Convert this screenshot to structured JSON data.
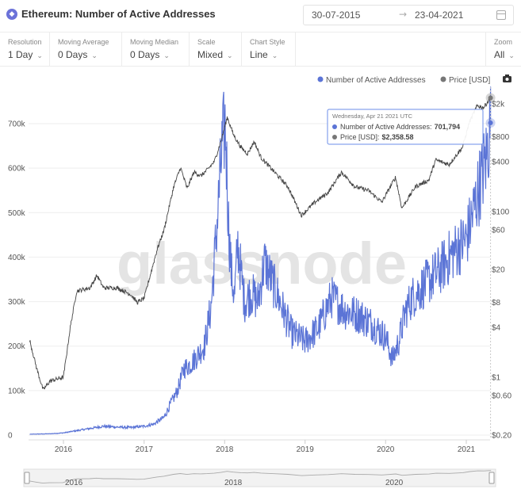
{
  "header": {
    "title": "Ethereum: Number of Active Addresses",
    "date_from": "30-07-2015",
    "date_arrow": "→",
    "date_to": "23-04-2021"
  },
  "controls": [
    {
      "label": "Resolution",
      "value": "1 Day"
    },
    {
      "label": "Moving Average",
      "value": "0 Days"
    },
    {
      "label": "Moving Median",
      "value": "0 Days"
    },
    {
      "label": "Scale",
      "value": "Mixed"
    },
    {
      "label": "Chart Style",
      "value": "Line"
    }
  ],
  "zoom": {
    "label": "Zoom",
    "value": "All"
  },
  "chevron": "⌄",
  "watermark": "glassnode",
  "colors": {
    "addresses": "#5b74d6",
    "price": "#444444",
    "grid": "#eeeeee"
  },
  "tooltip": {
    "date": "Wednesday, Apr 21 2021 UTC",
    "addresses_label": "Number of Active Addresses:",
    "addresses_value": "701,794",
    "price_label": "Price [USD]:",
    "price_value": "$2,358.58"
  },
  "navigator": {
    "labels": [
      "2016",
      "2018",
      "2020"
    ]
  },
  "chart_data": {
    "type": "line",
    "legend": {
      "placement": "top-right",
      "entries": [
        "Number of Active Addresses",
        "Price [USD]"
      ]
    },
    "x_ticks": [
      "2016",
      "2017",
      "2018",
      "2019",
      "2020",
      "2021"
    ],
    "left_axis": {
      "ticks": [
        0,
        100000,
        200000,
        300000,
        400000,
        500000,
        600000,
        700000
      ],
      "tick_labels": [
        "0",
        "100k",
        "200k",
        "300k",
        "400k",
        "500k",
        "600k",
        "700k"
      ],
      "range": [
        0,
        750000
      ]
    },
    "right_axis": {
      "scale": "log",
      "ticks": [
        0.2,
        0.6,
        1,
        4,
        8,
        20,
        60,
        100,
        400,
        800,
        2000
      ],
      "tick_labels": [
        "$0.20",
        "$0.60",
        "$1",
        "$4",
        "$8",
        "$20",
        "$60",
        "$100",
        "$400",
        "$800",
        "$2k"
      ]
    },
    "grid": true,
    "series": [
      {
        "name": "Number of Active Addresses",
        "axis": "left",
        "points": [
          [
            "2015-08-01",
            2000
          ],
          [
            "2015-11-01",
            3000
          ],
          [
            "2016-01-01",
            5000
          ],
          [
            "2016-03-01",
            10000
          ],
          [
            "2016-05-01",
            15000
          ],
          [
            "2016-07-01",
            20000
          ],
          [
            "2016-09-01",
            18000
          ],
          [
            "2016-11-01",
            17000
          ],
          [
            "2017-01-01",
            20000
          ],
          [
            "2017-02-15",
            25000
          ],
          [
            "2017-04-01",
            40000
          ],
          [
            "2017-05-01",
            70000
          ],
          [
            "2017-06-01",
            100000
          ],
          [
            "2017-07-01",
            150000
          ],
          [
            "2017-08-01",
            160000
          ],
          [
            "2017-09-01",
            180000
          ],
          [
            "2017-10-01",
            200000
          ],
          [
            "2017-11-01",
            290000
          ],
          [
            "2017-12-01",
            500000
          ],
          [
            "2017-12-20",
            640000
          ],
          [
            "2018-01-04",
            700000
          ],
          [
            "2018-01-20",
            460000
          ],
          [
            "2018-02-01",
            360000
          ],
          [
            "2018-02-15",
            310000
          ],
          [
            "2018-03-01",
            430000
          ],
          [
            "2018-04-01",
            300000
          ],
          [
            "2018-05-01",
            320000
          ],
          [
            "2018-06-01",
            300000
          ],
          [
            "2018-07-01",
            390000
          ],
          [
            "2018-09-01",
            310000
          ],
          [
            "2018-11-01",
            230000
          ],
          [
            "2019-01-01",
            210000
          ],
          [
            "2019-03-01",
            240000
          ],
          [
            "2019-05-01",
            310000
          ],
          [
            "2019-07-01",
            280000
          ],
          [
            "2019-09-01",
            270000
          ],
          [
            "2019-11-01",
            250000
          ],
          [
            "2020-01-01",
            220000
          ],
          [
            "2020-02-01",
            170000
          ],
          [
            "2020-03-01",
            210000
          ],
          [
            "2020-04-01",
            280000
          ],
          [
            "2020-05-01",
            310000
          ],
          [
            "2020-07-01",
            340000
          ],
          [
            "2020-09-01",
            370000
          ],
          [
            "2020-11-01",
            410000
          ],
          [
            "2021-01-01",
            440000
          ],
          [
            "2021-02-01",
            500000
          ],
          [
            "2021-03-01",
            560000
          ],
          [
            "2021-04-01",
            620000
          ],
          [
            "2021-04-21",
            701794
          ]
        ]
      },
      {
        "name": "Price [USD]",
        "axis": "right",
        "points": [
          [
            "2015-08-01",
            2.8
          ],
          [
            "2015-09-01",
            1.3
          ],
          [
            "2015-10-01",
            0.7
          ],
          [
            "2015-11-01",
            0.9
          ],
          [
            "2016-01-01",
            1.0
          ],
          [
            "2016-02-01",
            4.0
          ],
          [
            "2016-03-01",
            11.0
          ],
          [
            "2016-05-01",
            12.0
          ],
          [
            "2016-06-01",
            17.0
          ],
          [
            "2016-07-01",
            12.0
          ],
          [
            "2016-09-01",
            12.0
          ],
          [
            "2016-11-01",
            10.0
          ],
          [
            "2016-12-01",
            8.0
          ],
          [
            "2017-01-01",
            9.0
          ],
          [
            "2017-03-01",
            35.0
          ],
          [
            "2017-04-01",
            60.0
          ],
          [
            "2017-05-15",
            200.0
          ],
          [
            "2017-06-15",
            340.0
          ],
          [
            "2017-07-15",
            190.0
          ],
          [
            "2017-08-15",
            300.0
          ],
          [
            "2017-09-15",
            270.0
          ],
          [
            "2017-10-15",
            320.0
          ],
          [
            "2017-11-15",
            400.0
          ],
          [
            "2017-12-15",
            700.0
          ],
          [
            "2018-01-13",
            1380.0
          ],
          [
            "2018-02-10",
            850.0
          ],
          [
            "2018-03-15",
            600.0
          ],
          [
            "2018-04-15",
            500.0
          ],
          [
            "2018-05-15",
            700.0
          ],
          [
            "2018-06-15",
            450.0
          ],
          [
            "2018-08-15",
            300.0
          ],
          [
            "2018-10-15",
            200.0
          ],
          [
            "2018-12-15",
            90.0
          ],
          [
            "2019-02-15",
            130.0
          ],
          [
            "2019-04-15",
            170.0
          ],
          [
            "2019-06-15",
            300.0
          ],
          [
            "2019-08-15",
            200.0
          ],
          [
            "2019-10-15",
            180.0
          ],
          [
            "2019-12-15",
            130.0
          ],
          [
            "2020-02-15",
            260.0
          ],
          [
            "2020-03-15",
            110.0
          ],
          [
            "2020-05-15",
            200.0
          ],
          [
            "2020-07-15",
            240.0
          ],
          [
            "2020-08-15",
            420.0
          ],
          [
            "2020-10-15",
            370.0
          ],
          [
            "2020-12-15",
            600.0
          ],
          [
            "2021-01-15",
            1200.0
          ],
          [
            "2021-02-20",
            1900.0
          ],
          [
            "2021-03-20",
            1800.0
          ],
          [
            "2021-04-21",
            2358.58
          ]
        ]
      }
    ],
    "highlight": {
      "date": "2021-04-21"
    }
  }
}
